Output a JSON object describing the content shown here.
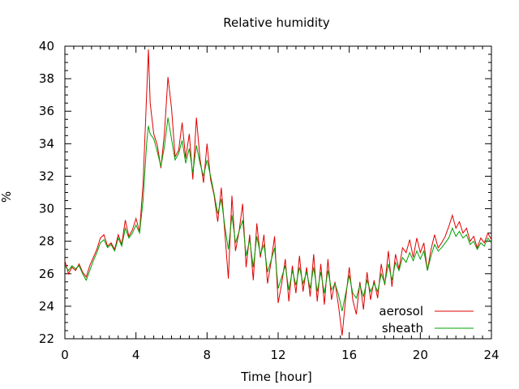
{
  "chart_data": {
    "type": "line",
    "title": "Relative humidity",
    "xlabel": "Time [hour]",
    "ylabel": "%",
    "xlim": [
      0,
      24
    ],
    "ylim": [
      22,
      40
    ],
    "xticks": [
      0,
      4,
      8,
      12,
      16,
      20,
      24
    ],
    "yticks": [
      22,
      24,
      26,
      28,
      30,
      32,
      34,
      36,
      38,
      40
    ],
    "x_minor_step": 0.5,
    "y_minor_step": 0.5,
    "grid": false,
    "legend_position": "bottom-right",
    "series": [
      {
        "name": "aerosol",
        "color": "#e00000",
        "points": [
          [
            0.0,
            26.8
          ],
          [
            0.2,
            26.0
          ],
          [
            0.4,
            26.4
          ],
          [
            0.6,
            26.2
          ],
          [
            0.8,
            26.6
          ],
          [
            1.0,
            26.1
          ],
          [
            1.2,
            25.8
          ],
          [
            1.4,
            26.5
          ],
          [
            1.6,
            27.0
          ],
          [
            1.8,
            27.5
          ],
          [
            2.0,
            28.2
          ],
          [
            2.2,
            28.4
          ],
          [
            2.4,
            27.7
          ],
          [
            2.6,
            27.9
          ],
          [
            2.8,
            27.5
          ],
          [
            3.0,
            28.4
          ],
          [
            3.2,
            27.8
          ],
          [
            3.4,
            29.3
          ],
          [
            3.6,
            28.3
          ],
          [
            3.8,
            28.7
          ],
          [
            4.0,
            29.4
          ],
          [
            4.2,
            28.6
          ],
          [
            4.4,
            31.5
          ],
          [
            4.6,
            37.0
          ],
          [
            4.7,
            39.8
          ],
          [
            4.8,
            36.5
          ],
          [
            5.0,
            34.6
          ],
          [
            5.2,
            33.9
          ],
          [
            5.4,
            32.5
          ],
          [
            5.6,
            34.6
          ],
          [
            5.8,
            38.1
          ],
          [
            6.0,
            36.2
          ],
          [
            6.2,
            33.2
          ],
          [
            6.4,
            33.6
          ],
          [
            6.6,
            35.3
          ],
          [
            6.8,
            33.1
          ],
          [
            7.0,
            34.6
          ],
          [
            7.2,
            31.8
          ],
          [
            7.4,
            35.6
          ],
          [
            7.6,
            33.1
          ],
          [
            7.8,
            31.6
          ],
          [
            8.0,
            34.0
          ],
          [
            8.2,
            31.8
          ],
          [
            8.4,
            30.8
          ],
          [
            8.6,
            29.2
          ],
          [
            8.8,
            31.3
          ],
          [
            9.0,
            28.5
          ],
          [
            9.2,
            25.7
          ],
          [
            9.4,
            30.8
          ],
          [
            9.6,
            27.4
          ],
          [
            9.8,
            28.6
          ],
          [
            10.0,
            30.3
          ],
          [
            10.2,
            26.4
          ],
          [
            10.4,
            28.4
          ],
          [
            10.6,
            25.6
          ],
          [
            10.8,
            29.1
          ],
          [
            11.0,
            27.0
          ],
          [
            11.2,
            28.4
          ],
          [
            11.4,
            25.4
          ],
          [
            11.6,
            26.7
          ],
          [
            11.8,
            28.3
          ],
          [
            12.0,
            24.2
          ],
          [
            12.2,
            25.4
          ],
          [
            12.4,
            26.9
          ],
          [
            12.6,
            24.3
          ],
          [
            12.8,
            26.5
          ],
          [
            13.0,
            24.8
          ],
          [
            13.2,
            27.1
          ],
          [
            13.4,
            24.9
          ],
          [
            13.6,
            26.4
          ],
          [
            13.8,
            24.6
          ],
          [
            14.0,
            27.2
          ],
          [
            14.2,
            24.3
          ],
          [
            14.4,
            26.6
          ],
          [
            14.6,
            24.1
          ],
          [
            14.8,
            26.9
          ],
          [
            15.0,
            24.4
          ],
          [
            15.2,
            25.5
          ],
          [
            15.4,
            24.0
          ],
          [
            15.6,
            22.2
          ],
          [
            15.8,
            24.5
          ],
          [
            16.0,
            26.4
          ],
          [
            16.2,
            24.4
          ],
          [
            16.4,
            23.5
          ],
          [
            16.6,
            25.5
          ],
          [
            16.8,
            23.8
          ],
          [
            17.0,
            26.1
          ],
          [
            17.2,
            24.4
          ],
          [
            17.4,
            25.6
          ],
          [
            17.6,
            24.5
          ],
          [
            17.8,
            26.6
          ],
          [
            18.0,
            25.3
          ],
          [
            18.2,
            27.4
          ],
          [
            18.4,
            25.2
          ],
          [
            18.6,
            27.2
          ],
          [
            18.8,
            26.3
          ],
          [
            19.0,
            27.6
          ],
          [
            19.2,
            27.3
          ],
          [
            19.4,
            28.1
          ],
          [
            19.6,
            27.0
          ],
          [
            19.8,
            28.2
          ],
          [
            20.0,
            27.3
          ],
          [
            20.2,
            27.9
          ],
          [
            20.4,
            26.2
          ],
          [
            20.6,
            27.5
          ],
          [
            20.8,
            28.4
          ],
          [
            21.0,
            27.6
          ],
          [
            21.2,
            27.9
          ],
          [
            21.4,
            28.3
          ],
          [
            21.6,
            28.9
          ],
          [
            21.8,
            29.6
          ],
          [
            22.0,
            28.8
          ],
          [
            22.2,
            29.2
          ],
          [
            22.4,
            28.5
          ],
          [
            22.6,
            28.8
          ],
          [
            22.8,
            28.0
          ],
          [
            23.0,
            28.3
          ],
          [
            23.2,
            27.6
          ],
          [
            23.4,
            28.2
          ],
          [
            23.6,
            27.9
          ],
          [
            23.8,
            28.5
          ],
          [
            24.0,
            28.1
          ]
        ]
      },
      {
        "name": "sheath",
        "color": "#00a000",
        "points": [
          [
            0.0,
            26.5
          ],
          [
            0.2,
            26.2
          ],
          [
            0.4,
            26.5
          ],
          [
            0.6,
            26.3
          ],
          [
            0.8,
            26.5
          ],
          [
            1.0,
            26.0
          ],
          [
            1.2,
            25.6
          ],
          [
            1.4,
            26.2
          ],
          [
            1.6,
            26.8
          ],
          [
            1.8,
            27.3
          ],
          [
            2.0,
            27.9
          ],
          [
            2.2,
            28.1
          ],
          [
            2.4,
            27.6
          ],
          [
            2.6,
            27.8
          ],
          [
            2.8,
            27.4
          ],
          [
            3.0,
            28.2
          ],
          [
            3.2,
            27.7
          ],
          [
            3.4,
            28.8
          ],
          [
            3.6,
            28.2
          ],
          [
            3.8,
            28.5
          ],
          [
            4.0,
            29.0
          ],
          [
            4.2,
            28.5
          ],
          [
            4.4,
            30.5
          ],
          [
            4.6,
            34.0
          ],
          [
            4.7,
            35.1
          ],
          [
            4.8,
            34.6
          ],
          [
            5.0,
            34.3
          ],
          [
            5.2,
            33.5
          ],
          [
            5.4,
            32.6
          ],
          [
            5.6,
            33.8
          ],
          [
            5.8,
            35.6
          ],
          [
            6.0,
            34.3
          ],
          [
            6.2,
            33.0
          ],
          [
            6.4,
            33.4
          ],
          [
            6.6,
            34.2
          ],
          [
            6.8,
            32.8
          ],
          [
            7.0,
            33.7
          ],
          [
            7.2,
            32.2
          ],
          [
            7.4,
            33.9
          ],
          [
            7.6,
            32.8
          ],
          [
            7.8,
            32.0
          ],
          [
            8.0,
            33.0
          ],
          [
            8.2,
            32.0
          ],
          [
            8.4,
            30.9
          ],
          [
            8.6,
            29.7
          ],
          [
            8.8,
            30.6
          ],
          [
            9.0,
            28.9
          ],
          [
            9.2,
            27.5
          ],
          [
            9.4,
            29.6
          ],
          [
            9.6,
            27.9
          ],
          [
            9.8,
            28.6
          ],
          [
            10.0,
            29.3
          ],
          [
            10.2,
            27.1
          ],
          [
            10.4,
            28.1
          ],
          [
            10.6,
            26.4
          ],
          [
            10.8,
            28.3
          ],
          [
            11.0,
            27.2
          ],
          [
            11.2,
            27.8
          ],
          [
            11.4,
            26.1
          ],
          [
            11.6,
            26.8
          ],
          [
            11.8,
            27.6
          ],
          [
            12.0,
            25.1
          ],
          [
            12.2,
            25.8
          ],
          [
            12.4,
            26.5
          ],
          [
            12.6,
            25.0
          ],
          [
            12.8,
            26.2
          ],
          [
            13.0,
            25.3
          ],
          [
            13.2,
            26.4
          ],
          [
            13.4,
            25.4
          ],
          [
            13.6,
            26.1
          ],
          [
            13.8,
            25.1
          ],
          [
            14.0,
            26.4
          ],
          [
            14.2,
            24.9
          ],
          [
            14.4,
            26.1
          ],
          [
            14.6,
            24.8
          ],
          [
            14.8,
            26.2
          ],
          [
            15.0,
            25.0
          ],
          [
            15.2,
            25.4
          ],
          [
            15.4,
            24.7
          ],
          [
            15.6,
            23.7
          ],
          [
            15.8,
            24.8
          ],
          [
            16.0,
            25.9
          ],
          [
            16.2,
            24.8
          ],
          [
            16.4,
            24.5
          ],
          [
            16.6,
            25.3
          ],
          [
            16.8,
            24.6
          ],
          [
            17.0,
            25.6
          ],
          [
            17.2,
            24.9
          ],
          [
            17.4,
            25.4
          ],
          [
            17.6,
            24.9
          ],
          [
            17.8,
            26.0
          ],
          [
            18.0,
            25.4
          ],
          [
            18.2,
            26.6
          ],
          [
            18.4,
            25.6
          ],
          [
            18.6,
            26.7
          ],
          [
            18.8,
            26.2
          ],
          [
            19.0,
            27.0
          ],
          [
            19.2,
            26.7
          ],
          [
            19.4,
            27.3
          ],
          [
            19.6,
            26.8
          ],
          [
            19.8,
            27.4
          ],
          [
            20.0,
            26.9
          ],
          [
            20.2,
            27.4
          ],
          [
            20.4,
            26.2
          ],
          [
            20.6,
            27.1
          ],
          [
            20.8,
            27.8
          ],
          [
            21.0,
            27.4
          ],
          [
            21.2,
            27.6
          ],
          [
            21.4,
            27.9
          ],
          [
            21.6,
            28.2
          ],
          [
            21.8,
            28.8
          ],
          [
            22.0,
            28.3
          ],
          [
            22.2,
            28.6
          ],
          [
            22.4,
            28.2
          ],
          [
            22.6,
            28.4
          ],
          [
            22.8,
            27.8
          ],
          [
            23.0,
            28.0
          ],
          [
            23.2,
            27.5
          ],
          [
            23.4,
            27.9
          ],
          [
            23.6,
            27.7
          ],
          [
            23.8,
            28.2
          ],
          [
            24.0,
            27.9
          ]
        ]
      }
    ]
  }
}
